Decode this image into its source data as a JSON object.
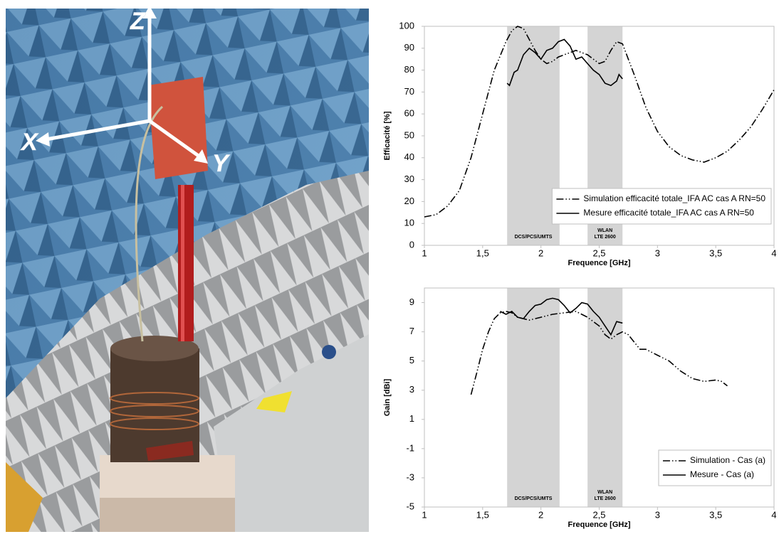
{
  "photo": {
    "axis_labels": [
      "Z",
      "X",
      "Y"
    ]
  },
  "chart_data": [
    {
      "type": "line",
      "xlabel": "Frequence [GHz]",
      "ylabel": "Efficacité [%]",
      "xlim": [
        1,
        4
      ],
      "xticks": [
        1,
        {
          "value": 1.5,
          "label": "1,5"
        },
        2,
        {
          "value": 2.5,
          "label": "2,5"
        },
        3,
        {
          "value": 3.5,
          "label": "3,5"
        },
        4
      ],
      "ylim": [
        0,
        100
      ],
      "yticks": [
        0,
        10,
        20,
        30,
        40,
        50,
        60,
        70,
        80,
        90,
        100
      ],
      "legend": "lower right",
      "band_color": "#d4d4d4",
      "bands": [
        {
          "lines": [
            "DCS/PCS/UMTS"
          ],
          "x": [
            1.71,
            2.16
          ]
        },
        {
          "lines": [
            "WLAN",
            "LTE 2600"
          ],
          "x": [
            2.4,
            2.7
          ]
        }
      ],
      "series": [
        {
          "name": "Simulation efficacité totale_IFA AC cas A RN=50",
          "color": "#000000",
          "style": "dashdotdot",
          "x": [
            1,
            1.1,
            1.2,
            1.3,
            1.4,
            1.5,
            1.6,
            1.7,
            1.75,
            1.8,
            1.85,
            1.9,
            1.95,
            2.0,
            2.05,
            2.1,
            2.15,
            2.2,
            2.3,
            2.4,
            2.5,
            2.55,
            2.6,
            2.65,
            2.7,
            2.8,
            2.9,
            3.0,
            3.1,
            3.2,
            3.3,
            3.4,
            3.5,
            3.6,
            3.7,
            3.8,
            3.9,
            4.0
          ],
          "values": [
            13,
            14,
            18,
            25,
            40,
            60,
            80,
            93,
            98,
            100,
            99,
            94,
            89,
            85,
            83,
            84,
            86,
            87,
            89,
            87,
            83,
            84,
            89,
            93,
            92,
            78,
            63,
            52,
            45,
            41,
            39,
            38,
            40,
            43,
            48,
            54,
            62,
            71
          ]
        },
        {
          "name": "Mesure efficacité totale_IFA AC cas A RN=50",
          "color": "#000000",
          "style": "solid",
          "x": [
            1.71,
            1.73,
            1.77,
            1.8,
            1.85,
            1.9,
            1.95,
            2.0,
            2.05,
            2.1,
            2.15,
            2.2,
            2.25,
            2.3,
            2.35,
            2.4,
            2.45,
            2.5,
            2.55,
            2.6,
            2.65,
            2.67,
            2.7
          ],
          "values": [
            74,
            73,
            79,
            80,
            87,
            90,
            88,
            85,
            89,
            90,
            93,
            94,
            91,
            85,
            86,
            83,
            80,
            78,
            74,
            73,
            75,
            78,
            76
          ]
        }
      ]
    },
    {
      "type": "line",
      "xlabel": "Frequence [GHz]",
      "ylabel": "Gain [dBi]",
      "xlim": [
        1,
        4
      ],
      "xticks": [
        1,
        {
          "value": 1.5,
          "label": "1,5"
        },
        2,
        {
          "value": 2.5,
          "label": "2,5"
        },
        3,
        {
          "value": 3.5,
          "label": "3,5"
        },
        4
      ],
      "ylim": [
        -5,
        10
      ],
      "yticks": [
        -5,
        -3,
        -1,
        1,
        3,
        5,
        7,
        9
      ],
      "legend": "lower right",
      "band_color": "#d4d4d4",
      "bands": [
        {
          "lines": [
            "DCS/PCS/UMTS"
          ],
          "x": [
            1.71,
            2.16
          ]
        },
        {
          "lines": [
            "WLAN",
            "LTE 2600"
          ],
          "x": [
            2.4,
            2.7
          ]
        }
      ],
      "series": [
        {
          "name": "Simulation - Cas (a)",
          "color": "#000000",
          "style": "dashdotdot",
          "x": [
            1.4,
            1.45,
            1.5,
            1.55,
            1.6,
            1.65,
            1.7,
            1.75,
            1.8,
            1.9,
            2.0,
            2.1,
            2.2,
            2.3,
            2.4,
            2.5,
            2.55,
            2.6,
            2.65,
            2.7,
            2.75,
            2.8,
            2.85,
            2.9,
            3.0,
            3.1,
            3.2,
            3.3,
            3.4,
            3.5,
            3.55,
            3.6
          ],
          "values": [
            2.7,
            4.2,
            5.8,
            7.0,
            7.9,
            8.3,
            8.4,
            8.3,
            8.0,
            7.8,
            8.0,
            8.2,
            8.3,
            8.4,
            8.0,
            7.4,
            6.8,
            6.5,
            6.8,
            7.0,
            6.8,
            6.3,
            5.8,
            5.8,
            5.4,
            5.0,
            4.3,
            3.8,
            3.6,
            3.7,
            3.6,
            3.3
          ]
        },
        {
          "name": "Mesure - Cas (a)",
          "color": "#000000",
          "style": "solid",
          "x": [
            1.65,
            1.7,
            1.75,
            1.8,
            1.85,
            1.9,
            1.95,
            2.0,
            2.05,
            2.1,
            2.15,
            2.2,
            2.25,
            2.3,
            2.35,
            2.4,
            2.45,
            2.5,
            2.55,
            2.6,
            2.65,
            2.7
          ],
          "values": [
            8.4,
            8.2,
            8.4,
            8.0,
            7.9,
            8.4,
            8.8,
            8.9,
            9.2,
            9.3,
            9.2,
            8.8,
            8.3,
            8.6,
            9.0,
            8.9,
            8.4,
            8.0,
            7.4,
            6.8,
            7.7,
            7.6
          ]
        }
      ]
    }
  ]
}
